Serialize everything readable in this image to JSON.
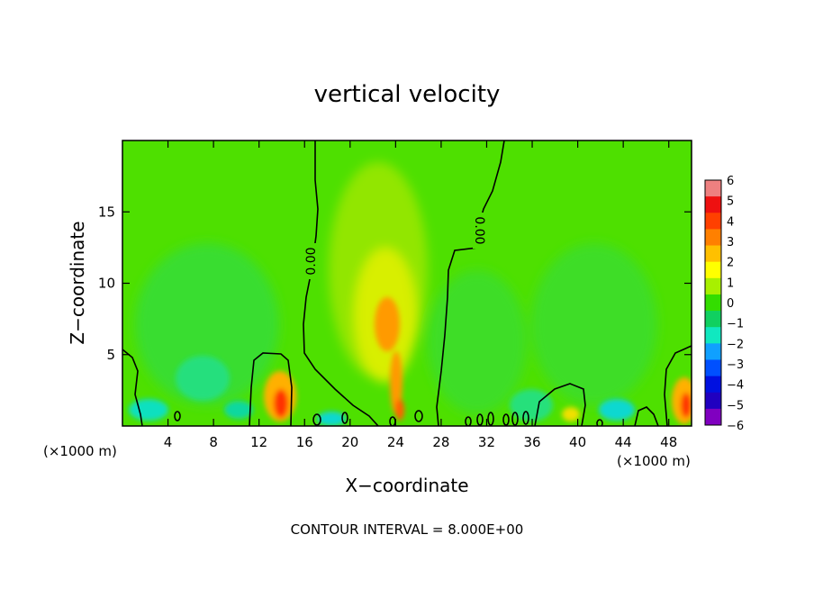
{
  "chart_data": {
    "type": "heatmap",
    "title": "vertical velocity",
    "xlabel": "X−coordinate",
    "ylabel": "Z−coordinate",
    "x_unit_left": "(×1000 m)",
    "x_unit_right": "(×1000 m)",
    "footer": "CONTOUR INTERVAL = 8.000E+00",
    "xlim": [
      0,
      50
    ],
    "ylim": [
      0,
      20
    ],
    "x_ticks": [
      4,
      8,
      12,
      16,
      20,
      24,
      28,
      32,
      36,
      40,
      44,
      48
    ],
    "y_ticks": [
      5,
      10,
      15
    ],
    "contour_level": 0,
    "contour_labels": [
      "0.00",
      "0.00"
    ],
    "colorbar": {
      "min": -6,
      "max": 6,
      "ticks": [
        "6",
        "5",
        "4",
        "3",
        "2",
        "1",
        "0",
        "−1",
        "−2",
        "−3",
        "−4",
        "−5",
        "−6"
      ],
      "colors": [
        "#ee8080",
        "#ee1010",
        "#ff4000",
        "#ff8000",
        "#ffc000",
        "#ffff00",
        "#a8f000",
        "#33dd00",
        "#10d060",
        "#10e8c0",
        "#10a0ff",
        "#0050ff",
        "#0010e0",
        "#2000c0",
        "#8000c0"
      ]
    },
    "features": [
      {
        "x": 24,
        "z": 8,
        "value": 3
      },
      {
        "x": 24.5,
        "z": 1.5,
        "value": 3.5
      },
      {
        "x": 13.8,
        "z": 1.5,
        "value": 4
      },
      {
        "x": 49.5,
        "z": 1.5,
        "value": 4
      },
      {
        "x": 40,
        "z": 0.8,
        "value": 2
      },
      {
        "x": 2,
        "z": 1,
        "value": -2
      },
      {
        "x": 7,
        "z": 2,
        "value": -1.5
      },
      {
        "x": 18,
        "z": 0.5,
        "value": -2
      },
      {
        "x": 36,
        "z": 1,
        "value": -1.5
      },
      {
        "x": 43,
        "z": 1,
        "value": -2
      }
    ]
  }
}
